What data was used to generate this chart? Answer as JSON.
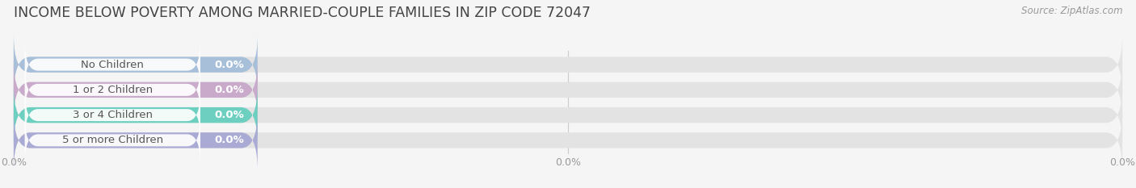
{
  "title": "INCOME BELOW POVERTY AMONG MARRIED-COUPLE FAMILIES IN ZIP CODE 72047",
  "source": "Source: ZipAtlas.com",
  "categories": [
    "No Children",
    "1 or 2 Children",
    "3 or 4 Children",
    "5 or more Children"
  ],
  "values": [
    0.0,
    0.0,
    0.0,
    0.0
  ],
  "bar_colors": [
    "#a8bfda",
    "#c9aacb",
    "#6dcfc0",
    "#aaabd4"
  ],
  "background_color": "#f5f5f5",
  "bar_bg_color": "#e3e3e3",
  "title_fontsize": 12.5,
  "label_fontsize": 9.5,
  "value_label_color": "#ffffff",
  "label_text_color": "#555555",
  "xlim_max": 100,
  "colored_bar_width": 22,
  "bar_height": 0.62,
  "grid_color": "#cccccc",
  "tick_color": "#999999",
  "tick_fontsize": 9
}
